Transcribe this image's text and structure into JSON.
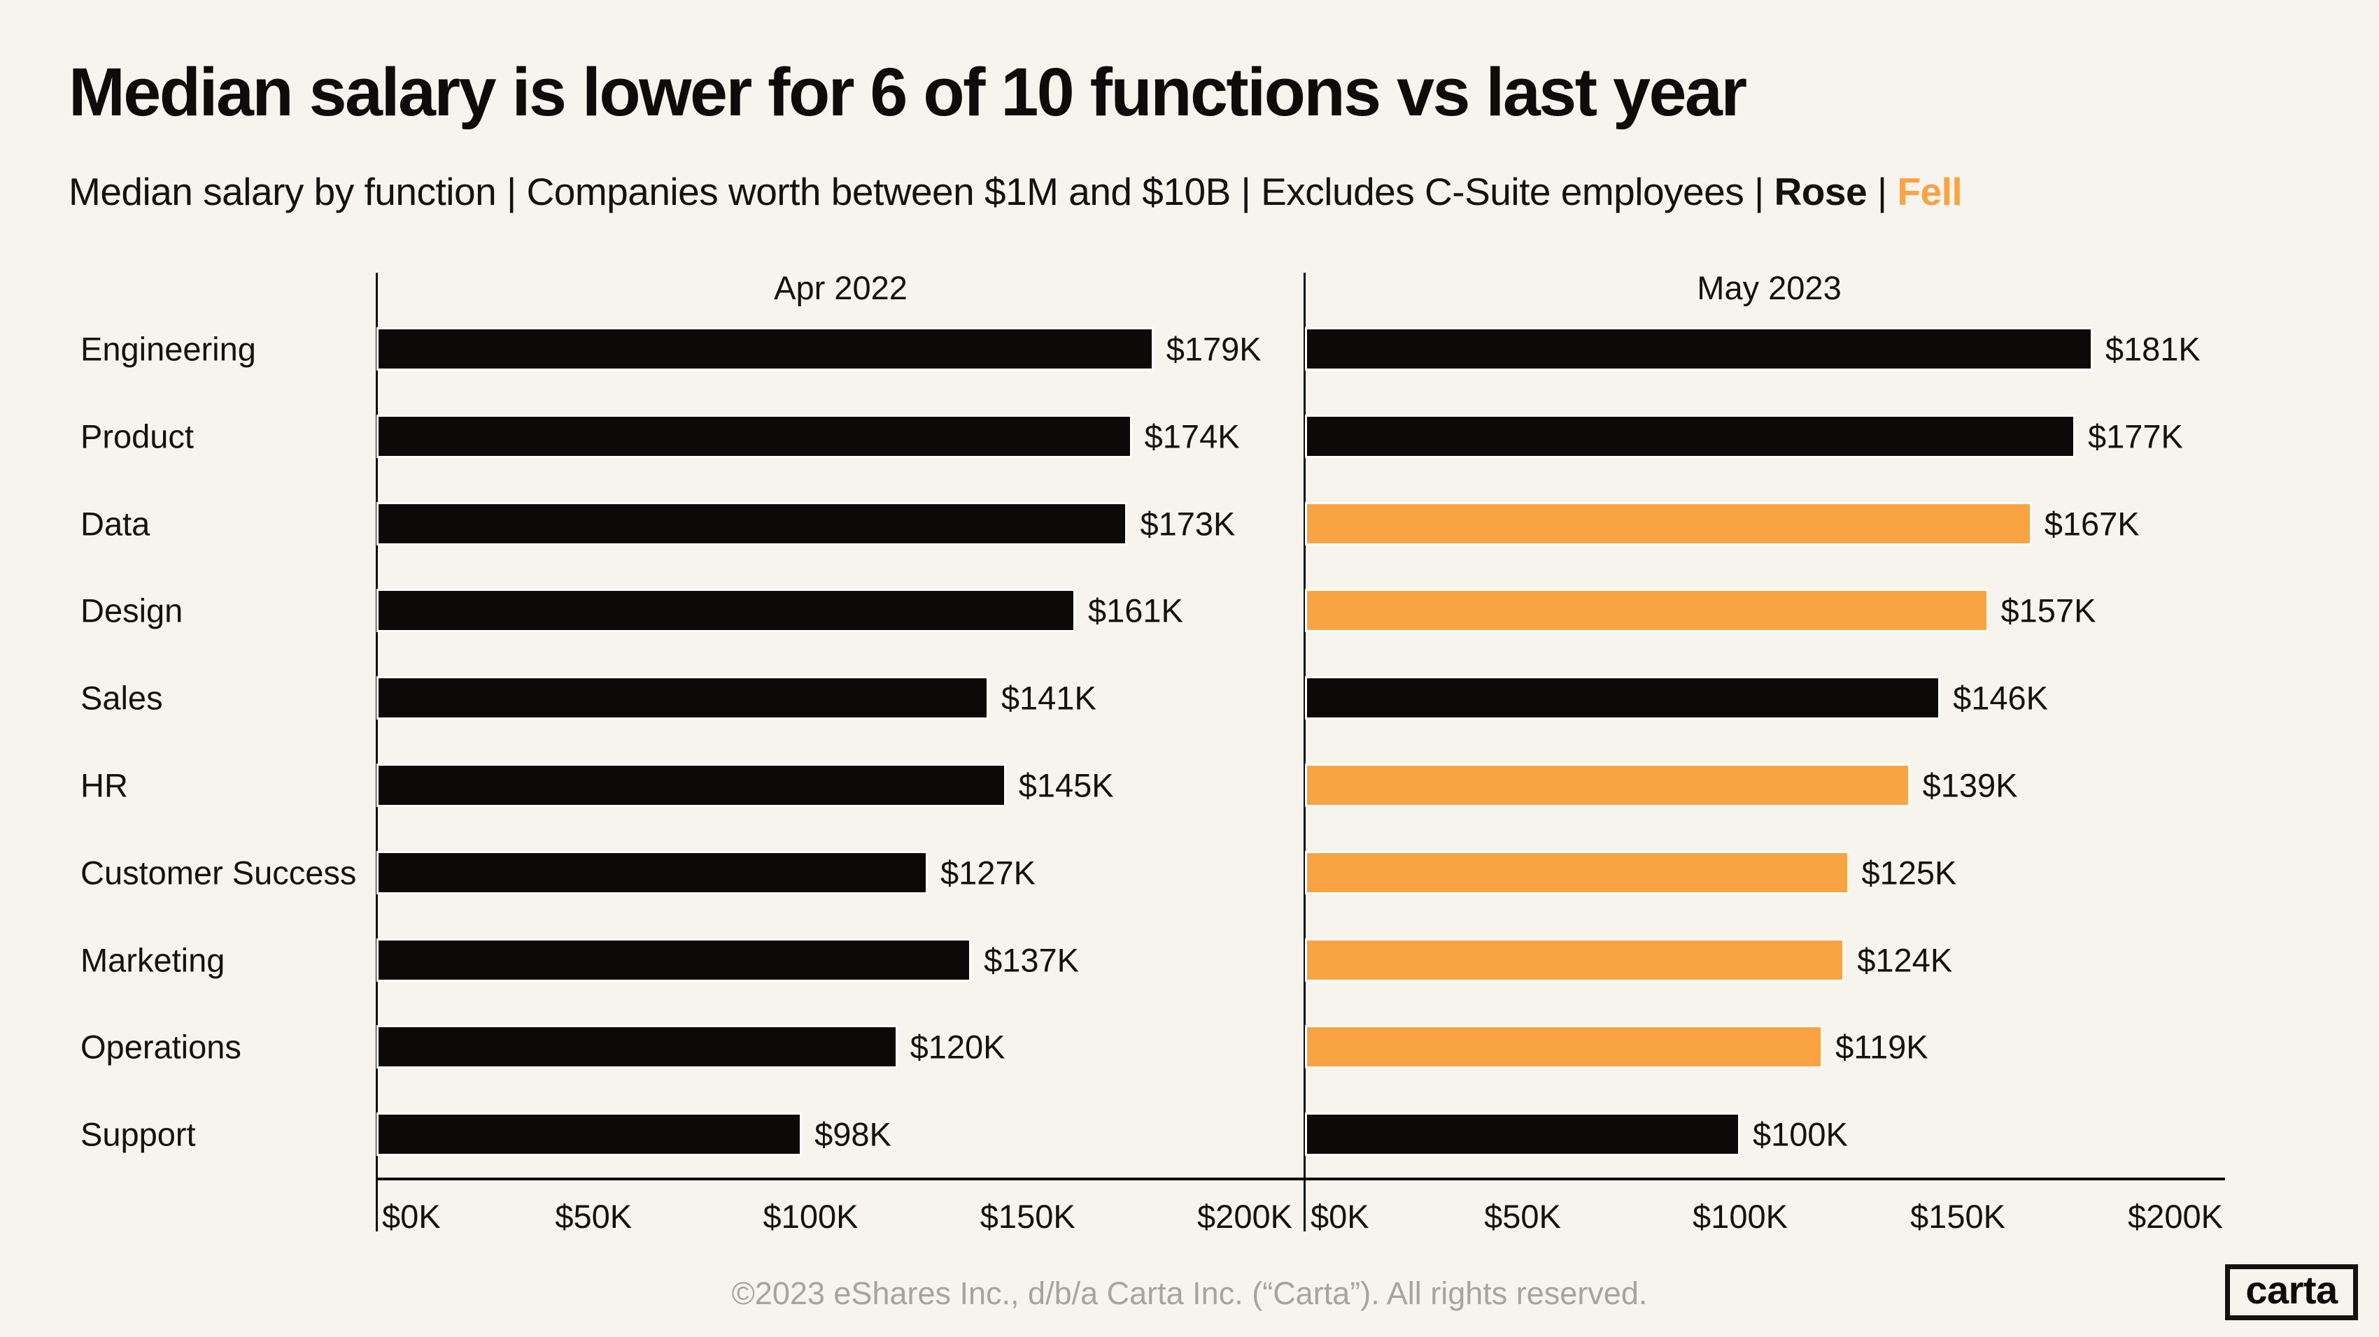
{
  "page": {
    "background": "#F7F4EE"
  },
  "header": {
    "title": "Median salary is lower for 6 of 10 functions vs last year",
    "subtitle_prefix": "Median salary by function | Companies worth between $1M and $10B | Excludes C-Suite employees | ",
    "legend_rose": "Rose",
    "legend_separator": " | ",
    "legend_fell": "Fell"
  },
  "chart_data": {
    "type": "bar",
    "orientation": "horizontal",
    "categories": [
      "Engineering",
      "Product",
      "Data",
      "Design",
      "Sales",
      "HR",
      "Customer Success",
      "Marketing",
      "Operations",
      "Support"
    ],
    "series": [
      {
        "name": "Apr 2022",
        "values": [
          179,
          174,
          173,
          161,
          141,
          145,
          127,
          137,
          120,
          98
        ],
        "labels": [
          "$179K",
          "$174K",
          "$173K",
          "$161K",
          "$141K",
          "$145K",
          "$127K",
          "$137K",
          "$120K",
          "$98K"
        ],
        "directions": [
          "rose",
          "rose",
          "rose",
          "rose",
          "rose",
          "rose",
          "rose",
          "rose",
          "rose",
          "rose"
        ]
      },
      {
        "name": "May 2023",
        "values": [
          181,
          177,
          167,
          157,
          146,
          139,
          125,
          124,
          119,
          100
        ],
        "labels": [
          "$181K",
          "$177K",
          "$167K",
          "$157K",
          "$146K",
          "$139K",
          "$125K",
          "$124K",
          "$119K",
          "$100K"
        ],
        "directions": [
          "rose",
          "rose",
          "fell",
          "fell",
          "rose",
          "fell",
          "fell",
          "fell",
          "fell",
          "rose"
        ]
      }
    ],
    "x_ticks": [
      "$0K",
      "$50K",
      "$100K",
      "$150K",
      "$200K"
    ],
    "xlim": [
      0,
      200
    ],
    "grid": false,
    "legend_position": "subtitle-inline",
    "colors": {
      "rose": "#0B0A08",
      "fell": "#F9A342"
    }
  },
  "footer": {
    "copyright": "©2023 eShares Inc., d/b/a Carta Inc. (“Carta”). All rights reserved.",
    "logo_text": "carta"
  }
}
